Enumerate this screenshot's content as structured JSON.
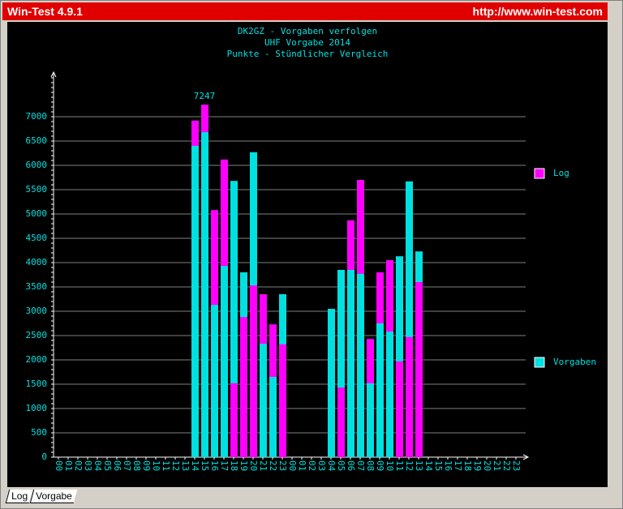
{
  "window": {
    "title": "Win-Test 4.9.1",
    "url": "http://www.win-test.com"
  },
  "tabs": [
    "Log",
    "Vorgabe"
  ],
  "chart_data": {
    "type": "bar",
    "title": "DK2GZ - Vorgaben verfolgen",
    "subtitles": [
      "UHF Vorgabe 2014",
      "Punkte - Stündlicher Vergleich"
    ],
    "categories": [
      "00",
      "01",
      "02",
      "03",
      "04",
      "05",
      "06",
      "07",
      "08",
      "09",
      "10",
      "11",
      "12",
      "13",
      "14",
      "15",
      "16",
      "17",
      "18",
      "19",
      "20",
      "21",
      "22",
      "23",
      "00",
      "01",
      "02",
      "03",
      "04",
      "05",
      "06",
      "07",
      "08",
      "09",
      "10",
      "11",
      "12",
      "13",
      "14",
      "15",
      "16",
      "17",
      "18",
      "19",
      "20",
      "21",
      "22",
      "23"
    ],
    "series": [
      {
        "name": "Log",
        "color": "#ff00ff",
        "values": [
          null,
          null,
          null,
          null,
          null,
          null,
          null,
          null,
          null,
          null,
          null,
          null,
          null,
          null,
          6920,
          7247,
          5080,
          6120,
          1520,
          2880,
          3530,
          3350,
          2730,
          2320,
          null,
          null,
          null,
          null,
          null,
          1430,
          4870,
          5700,
          2430,
          3800,
          4050,
          1970,
          2470,
          3600,
          null,
          null,
          null,
          null,
          null,
          null,
          null,
          null,
          null,
          null
        ]
      },
      {
        "name": "Vorgaben",
        "color": "#00e0e0",
        "values": [
          null,
          null,
          null,
          null,
          null,
          null,
          null,
          null,
          null,
          null,
          null,
          null,
          null,
          null,
          6400,
          6680,
          3130,
          3930,
          5680,
          3800,
          6270,
          2330,
          1650,
          3350,
          null,
          null,
          null,
          null,
          3050,
          3850,
          3850,
          3770,
          1520,
          2750,
          2580,
          4130,
          5670,
          4230,
          null,
          null,
          null,
          null,
          null,
          null,
          null,
          null,
          null,
          null
        ]
      }
    ],
    "ylim": [
      0,
      7500
    ],
    "yticks": [
      0,
      500,
      1000,
      1500,
      2000,
      2500,
      3000,
      3500,
      4000,
      4500,
      5000,
      5500,
      6000,
      6500,
      7000
    ],
    "grid": true,
    "legend": "right"
  }
}
